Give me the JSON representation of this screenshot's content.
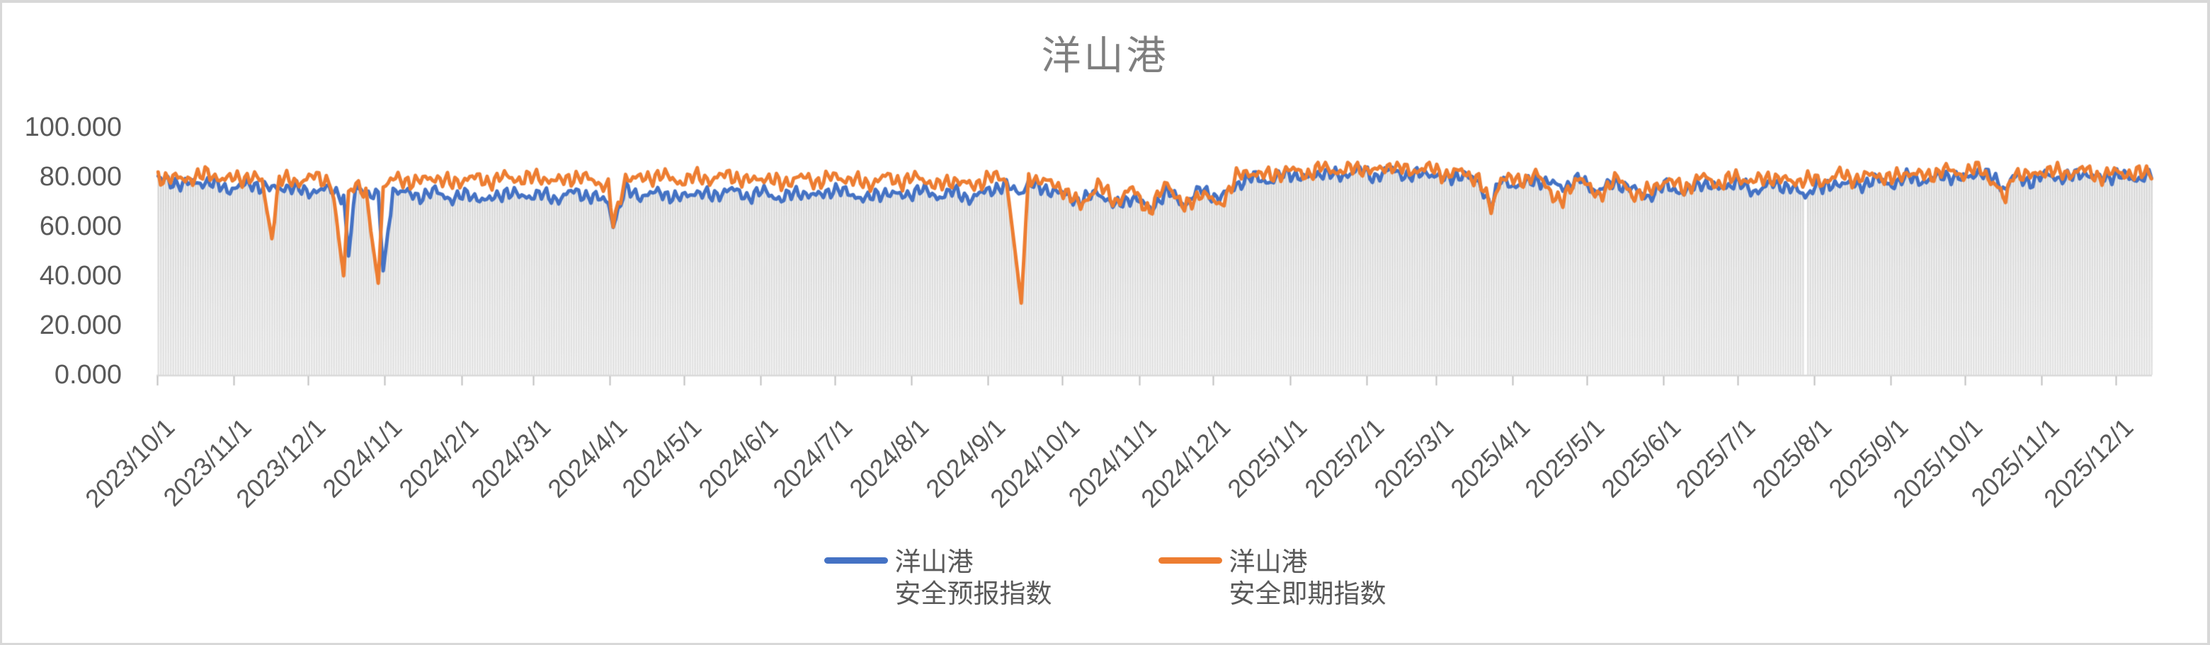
{
  "window": {
    "title": "洋山港",
    "border_color": "#d8d8d8"
  },
  "colors": {
    "forecast_line": "#4472C4",
    "spot_line": "#ED7D31",
    "bar_fill_top": "#d4d4d4",
    "bar_fill_bottom": "#e2e2e2",
    "axis_line": "#d9d9d9",
    "tick_mark": "#bfbfbf",
    "axis_text": "#595959",
    "title_text": "#7f7f7f"
  },
  "legend": {
    "items": [
      {
        "line1": "洋山港",
        "line2": "安全预报指数",
        "color": "#4472C4"
      },
      {
        "line1": "洋山港",
        "line2": "安全即期指数",
        "color": "#ED7D31"
      }
    ]
  },
  "chart_data": {
    "type": "line",
    "title": "洋山港",
    "xlabel": "",
    "ylabel": "",
    "ylim": [
      0,
      100
    ],
    "y_tick_interval": 20,
    "y_tick_labels": [
      "100.000",
      "80.000",
      "60.000",
      "40.000",
      "20.000",
      "0.000"
    ],
    "y_tick_values": [
      100,
      80,
      60,
      40,
      20,
      0
    ],
    "x_start_date": "2023/10/1",
    "x_end_date": "2025/12/15",
    "x_unit": "day",
    "total_days": 807,
    "x_tick_labels": [
      "2023/10/1",
      "2023/11/1",
      "2023/12/1",
      "2024/1/1",
      "2024/2/1",
      "2024/3/1",
      "2024/4/1",
      "2024/5/1",
      "2024/6/1",
      "2024/7/1",
      "2024/8/1",
      "2024/9/1",
      "2024/10/1",
      "2024/11/1",
      "2024/12/1",
      "2025/1/1",
      "2025/2/1",
      "2025/3/1",
      "2025/4/1",
      "2025/5/1",
      "2025/6/1",
      "2025/7/1",
      "2025/8/1",
      "2025/9/1",
      "2025/10/1",
      "2025/11/1",
      "2025/12/1"
    ],
    "x_tick_day_offsets": [
      0,
      31,
      61,
      92,
      123,
      152,
      183,
      213,
      244,
      274,
      305,
      336,
      366,
      397,
      427,
      458,
      489,
      517,
      548,
      578,
      609,
      639,
      670,
      701,
      731,
      762,
      792
    ],
    "grid": false,
    "legend_position": "bottom-center",
    "background_bars": {
      "description": "light gray daily bar for every day, height = lower of the two line values",
      "per": "day",
      "missing_day_index": 666
    },
    "noise_note": "daily values oscillate around the anchors; anchors are piecewise-linear samples [day_offset_from_2023-10-01, index_value]",
    "series": [
      {
        "name": "洋山港 安全预报指数",
        "color": "#4472C4",
        "noise_amplitude": 3.0,
        "noise_phase": 0.4,
        "anchors": [
          [
            0,
            79
          ],
          [
            10,
            77
          ],
          [
            20,
            78
          ],
          [
            28,
            75
          ],
          [
            38,
            77
          ],
          [
            46,
            75
          ],
          [
            52,
            76
          ],
          [
            60,
            74
          ],
          [
            70,
            75
          ],
          [
            75,
            72
          ],
          [
            77,
            48
          ],
          [
            80,
            76
          ],
          [
            84,
            74
          ],
          [
            89,
            72
          ],
          [
            91,
            42
          ],
          [
            95,
            75
          ],
          [
            105,
            72
          ],
          [
            112,
            74
          ],
          [
            119,
            71
          ],
          [
            126,
            73
          ],
          [
            133,
            70
          ],
          [
            140,
            74
          ],
          [
            147,
            72
          ],
          [
            154,
            73
          ],
          [
            161,
            71
          ],
          [
            168,
            74
          ],
          [
            175,
            72
          ],
          [
            182,
            70
          ],
          [
            184,
            60
          ],
          [
            189,
            75
          ],
          [
            196,
            72
          ],
          [
            203,
            74
          ],
          [
            210,
            71
          ],
          [
            217,
            74
          ],
          [
            224,
            72
          ],
          [
            231,
            75
          ],
          [
            238,
            72
          ],
          [
            245,
            74
          ],
          [
            252,
            71
          ],
          [
            259,
            74
          ],
          [
            266,
            72
          ],
          [
            273,
            75
          ],
          [
            280,
            73
          ],
          [
            287,
            71
          ],
          [
            294,
            74
          ],
          [
            301,
            72
          ],
          [
            308,
            75
          ],
          [
            315,
            72
          ],
          [
            322,
            74
          ],
          [
            329,
            71
          ],
          [
            336,
            75
          ],
          [
            343,
            76
          ],
          [
            349,
            74
          ],
          [
            352,
            77
          ],
          [
            359,
            75
          ],
          [
            366,
            73
          ],
          [
            373,
            70
          ],
          [
            380,
            74
          ],
          [
            387,
            68
          ],
          [
            394,
            72
          ],
          [
            401,
            67
          ],
          [
            408,
            74
          ],
          [
            415,
            69
          ],
          [
            422,
            75
          ],
          [
            429,
            71
          ],
          [
            436,
            77
          ],
          [
            443,
            80
          ],
          [
            450,
            78
          ],
          [
            457,
            82
          ],
          [
            464,
            79
          ],
          [
            471,
            82
          ],
          [
            478,
            80
          ],
          [
            485,
            83
          ],
          [
            492,
            80
          ],
          [
            499,
            83
          ],
          [
            506,
            80
          ],
          [
            513,
            82
          ],
          [
            520,
            79
          ],
          [
            527,
            81
          ],
          [
            534,
            78
          ],
          [
            539,
            68
          ],
          [
            543,
            79
          ],
          [
            550,
            76
          ],
          [
            557,
            79
          ],
          [
            564,
            77
          ],
          [
            568,
            76
          ],
          [
            575,
            79
          ],
          [
            582,
            74
          ],
          [
            589,
            78
          ],
          [
            596,
            75
          ],
          [
            603,
            72
          ],
          [
            610,
            77
          ],
          [
            617,
            73
          ],
          [
            624,
            78
          ],
          [
            631,
            75
          ],
          [
            638,
            78
          ],
          [
            645,
            74
          ],
          [
            652,
            77
          ],
          [
            660,
            76
          ],
          [
            666,
            72
          ],
          [
            671,
            78
          ],
          [
            673,
            75
          ],
          [
            680,
            78
          ],
          [
            687,
            76
          ],
          [
            694,
            79
          ],
          [
            701,
            77
          ],
          [
            708,
            80
          ],
          [
            715,
            78
          ],
          [
            722,
            81
          ],
          [
            729,
            79
          ],
          [
            736,
            82
          ],
          [
            743,
            79
          ],
          [
            747,
            75
          ],
          [
            750,
            80
          ],
          [
            757,
            78
          ],
          [
            764,
            81
          ],
          [
            771,
            79
          ],
          [
            778,
            82
          ],
          [
            785,
            79
          ],
          [
            792,
            81
          ],
          [
            799,
            79
          ],
          [
            806,
            81
          ]
        ]
      },
      {
        "name": "洋山港 安全即期指数",
        "color": "#ED7D31",
        "noise_amplitude": 3.4,
        "noise_phase": 2.1,
        "anchors": [
          [
            0,
            80
          ],
          [
            10,
            79
          ],
          [
            20,
            81
          ],
          [
            28,
            79
          ],
          [
            38,
            80
          ],
          [
            42,
            78
          ],
          [
            46,
            55
          ],
          [
            49,
            79
          ],
          [
            56,
            78
          ],
          [
            63,
            80
          ],
          [
            70,
            78
          ],
          [
            75,
            40
          ],
          [
            77,
            74
          ],
          [
            80,
            78
          ],
          [
            84,
            72
          ],
          [
            89,
            37
          ],
          [
            91,
            76
          ],
          [
            95,
            79
          ],
          [
            105,
            78
          ],
          [
            112,
            80
          ],
          [
            119,
            77
          ],
          [
            126,
            80
          ],
          [
            133,
            78
          ],
          [
            140,
            80
          ],
          [
            147,
            79
          ],
          [
            154,
            80
          ],
          [
            161,
            78
          ],
          [
            168,
            80
          ],
          [
            175,
            79
          ],
          [
            182,
            76
          ],
          [
            184,
            60
          ],
          [
            189,
            80
          ],
          [
            196,
            79
          ],
          [
            203,
            81
          ],
          [
            210,
            78
          ],
          [
            217,
            80
          ],
          [
            224,
            79
          ],
          [
            231,
            81
          ],
          [
            238,
            78
          ],
          [
            245,
            80
          ],
          [
            252,
            77
          ],
          [
            259,
            80
          ],
          [
            266,
            78
          ],
          [
            273,
            80
          ],
          [
            280,
            79
          ],
          [
            287,
            77
          ],
          [
            294,
            80
          ],
          [
            301,
            78
          ],
          [
            308,
            80
          ],
          [
            315,
            76
          ],
          [
            322,
            79
          ],
          [
            329,
            76
          ],
          [
            336,
            80
          ],
          [
            343,
            79
          ],
          [
            349,
            29
          ],
          [
            352,
            80
          ],
          [
            359,
            78
          ],
          [
            366,
            75
          ],
          [
            373,
            68
          ],
          [
            380,
            77
          ],
          [
            387,
            70
          ],
          [
            394,
            75
          ],
          [
            401,
            66
          ],
          [
            408,
            78
          ],
          [
            415,
            67
          ],
          [
            422,
            74
          ],
          [
            429,
            68
          ],
          [
            436,
            80
          ],
          [
            443,
            82
          ],
          [
            450,
            80
          ],
          [
            457,
            83
          ],
          [
            464,
            81
          ],
          [
            471,
            84
          ],
          [
            478,
            82
          ],
          [
            485,
            84
          ],
          [
            492,
            82
          ],
          [
            499,
            85
          ],
          [
            506,
            82
          ],
          [
            513,
            84
          ],
          [
            520,
            81
          ],
          [
            527,
            82
          ],
          [
            534,
            79
          ],
          [
            539,
            67
          ],
          [
            543,
            80
          ],
          [
            550,
            78
          ],
          [
            557,
            81
          ],
          [
            564,
            73
          ],
          [
            568,
            70
          ],
          [
            575,
            81
          ],
          [
            582,
            71
          ],
          [
            589,
            80
          ],
          [
            596,
            73
          ],
          [
            603,
            74
          ],
          [
            610,
            79
          ],
          [
            617,
            75
          ],
          [
            624,
            80
          ],
          [
            631,
            77
          ],
          [
            638,
            80
          ],
          [
            645,
            78
          ],
          [
            652,
            80
          ],
          [
            660,
            78
          ],
          [
            666,
            79
          ],
          [
            673,
            78
          ],
          [
            680,
            81
          ],
          [
            687,
            79
          ],
          [
            694,
            81
          ],
          [
            701,
            79
          ],
          [
            708,
            82
          ],
          [
            715,
            80
          ],
          [
            722,
            83
          ],
          [
            729,
            81
          ],
          [
            736,
            84
          ],
          [
            743,
            77
          ],
          [
            747,
            70
          ],
          [
            750,
            82
          ],
          [
            757,
            80
          ],
          [
            764,
            83
          ],
          [
            771,
            81
          ],
          [
            778,
            83
          ],
          [
            785,
            80
          ],
          [
            792,
            82
          ],
          [
            799,
            81
          ],
          [
            806,
            82
          ]
        ]
      }
    ],
    "notable_events": [
      {
        "date": "2023/11/16",
        "series": "安全即期指数",
        "value": 55
      },
      {
        "date": "2023/12/15",
        "series": "安全即期指数",
        "value": 40
      },
      {
        "date": "2023/12/17",
        "series": "安全预报指数",
        "value": 48
      },
      {
        "date": "2023/12/29",
        "series": "安全即期指数",
        "value": 37
      },
      {
        "date": "2023/12/31",
        "series": "安全预报指数",
        "value": 42
      },
      {
        "date": "2024/4/2",
        "series": "both",
        "value": 60
      },
      {
        "date": "2024/9/14",
        "series": "安全即期指数",
        "value": 29
      },
      {
        "date": "2024/11/6",
        "series": "安全即期指数",
        "value": 66
      },
      {
        "date": "2025/3/24",
        "series": "both",
        "value": 67
      },
      {
        "date": "2025/7/28",
        "series": "missing-data-gap",
        "value": null
      },
      {
        "date": "2025/10/18",
        "series": "安全即期指数",
        "value": 70
      }
    ]
  }
}
